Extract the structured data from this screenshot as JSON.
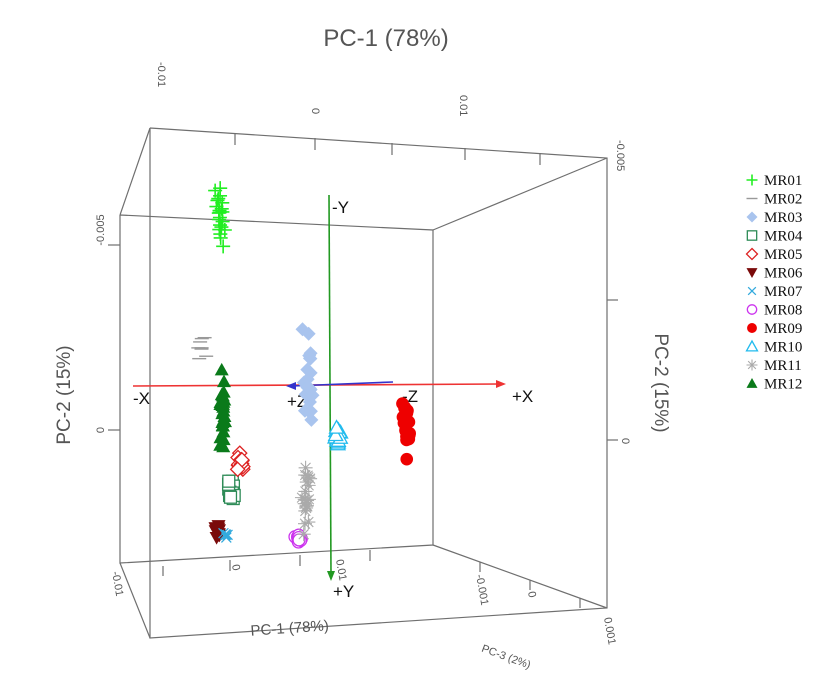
{
  "chart_data": {
    "type": "scatter",
    "projection": "3d",
    "axes": {
      "pc1": "PC-1 (78%)",
      "pc2": "PC-2 (15%)",
      "pc3": "PC-3 (2%)"
    },
    "top_ticks": [
      "-0.01",
      "0",
      "0.01"
    ],
    "right_top_ticks": [
      "-0.005"
    ],
    "left_ticks": [
      "-0.005",
      "0"
    ],
    "right_ticks": [
      "0"
    ],
    "bottom_ticks": [
      "-0.01",
      "0",
      "0.01"
    ],
    "depth_ticks": [
      "-0.001",
      "0",
      "0.001"
    ],
    "direction_labels": {
      "neg_x": "-X",
      "pos_x": "+X",
      "neg_y": "-Y",
      "pos_y": "+Y",
      "neg_z": "-Z",
      "pos_z": "+Z"
    },
    "legend_placement": "right",
    "series": [
      {
        "name": "MR01",
        "marker": "plus",
        "color": "#22ee22",
        "center": [
          -0.0072,
          -0.0072
        ],
        "spread": [
          0.0005,
          0.0018
        ],
        "count": 22
      },
      {
        "name": "MR02",
        "marker": "dash",
        "color": "#999999",
        "center": [
          -0.0088,
          -0.0028
        ],
        "spread": [
          0.0006,
          0.0008
        ],
        "count": 8
      },
      {
        "name": "MR03",
        "marker": "diamond",
        "color": "#a9c4ee",
        "center": [
          -0.0001,
          -0.0018
        ],
        "spread": [
          0.0006,
          0.0018
        ],
        "count": 22
      },
      {
        "name": "MR04",
        "marker": "square",
        "color": "#2e8b57",
        "center": [
          -0.0063,
          0.002
        ],
        "spread": [
          0.0004,
          0.0006
        ],
        "count": 14
      },
      {
        "name": "MR05",
        "marker": "diamond-open",
        "color": "#dd2222",
        "center": [
          -0.0056,
          0.0011
        ],
        "spread": [
          0.0004,
          0.0004
        ],
        "count": 14
      },
      {
        "name": "MR06",
        "marker": "triangle-down",
        "color": "#7a0a0a",
        "center": [
          -0.0074,
          0.0034
        ],
        "spread": [
          0.0003,
          0.0005
        ],
        "count": 14
      },
      {
        "name": "MR07",
        "marker": "x",
        "color": "#33aadd",
        "center": [
          -0.0068,
          0.0035
        ],
        "spread": [
          0.0003,
          0.0002
        ],
        "count": 6
      },
      {
        "name": "MR08",
        "marker": "circle-open",
        "color": "#cc33ee",
        "center": [
          -0.0009,
          0.0036
        ],
        "spread": [
          0.0004,
          0.0002
        ],
        "count": 12
      },
      {
        "name": "MR09",
        "marker": "circle",
        "color": "#ee0000",
        "center": [
          0.0077,
          -0.0001
        ],
        "spread": [
          0.0005,
          0.0014
        ],
        "count": 18
      },
      {
        "name": "MR10",
        "marker": "triangle-open",
        "color": "#22bbee",
        "center": [
          0.0023,
          0.0002
        ],
        "spread": [
          0.0004,
          0.0005
        ],
        "count": 14
      },
      {
        "name": "MR11",
        "marker": "asterisk",
        "color": "#aaaaaa",
        "center": [
          -0.0003,
          0.0023
        ],
        "spread": [
          0.0004,
          0.0015
        ],
        "count": 20
      },
      {
        "name": "MR12",
        "marker": "triangle",
        "color": "#0a7a1a",
        "center": [
          -0.007,
          -0.0006
        ],
        "spread": [
          0.0003,
          0.0018
        ],
        "count": 26
      }
    ]
  }
}
